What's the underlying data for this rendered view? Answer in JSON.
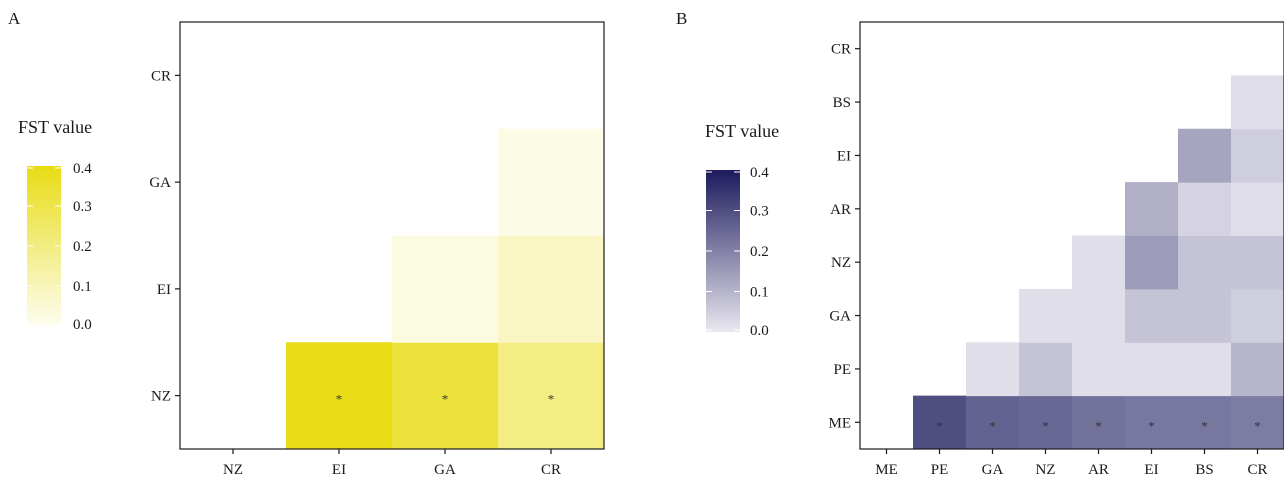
{
  "chart_data": [
    {
      "type": "heatmap",
      "panel_label": "A",
      "legend_title": "FST value",
      "legend_ticks": [
        "0.4",
        "0.3",
        "0.2",
        "0.1",
        "0.0"
      ],
      "color_low": "#fdfdf0",
      "color_high": "#e8dc14",
      "value_range": [
        0,
        0.4
      ],
      "x_categories": [
        "NZ",
        "EI",
        "GA",
        "CR"
      ],
      "y_categories": [
        "NZ",
        "EI",
        "GA",
        "CR"
      ],
      "cells": [
        {
          "x": "EI",
          "y": "NZ",
          "value": 0.4,
          "significant": true
        },
        {
          "x": "GA",
          "y": "NZ",
          "value": 0.33,
          "significant": true
        },
        {
          "x": "CR",
          "y": "NZ",
          "value": 0.2,
          "significant": true
        },
        {
          "x": "GA",
          "y": "EI",
          "value": 0.03,
          "significant": false
        },
        {
          "x": "CR",
          "y": "EI",
          "value": 0.08,
          "significant": false
        },
        {
          "x": "CR",
          "y": "GA",
          "value": 0.02,
          "significant": false
        }
      ],
      "significance_marker": "*"
    },
    {
      "type": "heatmap",
      "panel_label": "B",
      "legend_title": "FST value",
      "legend_ticks": [
        "0.4",
        "0.3",
        "0.2",
        "0.1",
        "0.0"
      ],
      "color_low": "#e9e8f0",
      "color_high": "#1c1a5c",
      "value_range": [
        0,
        0.4
      ],
      "x_categories": [
        "ME",
        "PE",
        "GA",
        "NZ",
        "AR",
        "EI",
        "BS",
        "CR"
      ],
      "y_categories": [
        "ME",
        "PE",
        "GA",
        "NZ",
        "AR",
        "EI",
        "BS",
        "CR"
      ],
      "cells": [
        {
          "x": "PE",
          "y": "ME",
          "value": 0.3,
          "significant": true
        },
        {
          "x": "GA",
          "y": "ME",
          "value": 0.26,
          "significant": true
        },
        {
          "x": "NZ",
          "y": "ME",
          "value": 0.25,
          "significant": true
        },
        {
          "x": "AR",
          "y": "ME",
          "value": 0.23,
          "significant": true
        },
        {
          "x": "EI",
          "y": "ME",
          "value": 0.22,
          "significant": true
        },
        {
          "x": "BS",
          "y": "ME",
          "value": 0.22,
          "significant": true
        },
        {
          "x": "CR",
          "y": "ME",
          "value": 0.21,
          "significant": true
        },
        {
          "x": "GA",
          "y": "PE",
          "value": 0.02,
          "significant": false
        },
        {
          "x": "NZ",
          "y": "PE",
          "value": 0.07,
          "significant": false
        },
        {
          "x": "AR",
          "y": "PE",
          "value": 0.02,
          "significant": false
        },
        {
          "x": "EI",
          "y": "PE",
          "value": 0.02,
          "significant": false
        },
        {
          "x": "BS",
          "y": "PE",
          "value": 0.02,
          "significant": false
        },
        {
          "x": "CR",
          "y": "PE",
          "value": 0.1,
          "significant": false
        },
        {
          "x": "NZ",
          "y": "GA",
          "value": 0.02,
          "significant": false
        },
        {
          "x": "AR",
          "y": "GA",
          "value": 0.02,
          "significant": false
        },
        {
          "x": "EI",
          "y": "GA",
          "value": 0.07,
          "significant": false
        },
        {
          "x": "BS",
          "y": "GA",
          "value": 0.07,
          "significant": false
        },
        {
          "x": "CR",
          "y": "GA",
          "value": 0.05,
          "significant": false
        },
        {
          "x": "AR",
          "y": "NZ",
          "value": 0.02,
          "significant": false
        },
        {
          "x": "EI",
          "y": "NZ",
          "value": 0.15,
          "significant": false
        },
        {
          "x": "BS",
          "y": "NZ",
          "value": 0.07,
          "significant": false
        },
        {
          "x": "CR",
          "y": "NZ",
          "value": 0.07,
          "significant": false
        },
        {
          "x": "EI",
          "y": "AR",
          "value": 0.11,
          "significant": false
        },
        {
          "x": "BS",
          "y": "AR",
          "value": 0.04,
          "significant": false
        },
        {
          "x": "CR",
          "y": "AR",
          "value": 0.02,
          "significant": false
        },
        {
          "x": "BS",
          "y": "EI",
          "value": 0.13,
          "significant": false
        },
        {
          "x": "CR",
          "y": "EI",
          "value": 0.05,
          "significant": false
        },
        {
          "x": "CR",
          "y": "BS",
          "value": 0.02,
          "significant": false
        }
      ],
      "significance_marker": "*"
    }
  ]
}
